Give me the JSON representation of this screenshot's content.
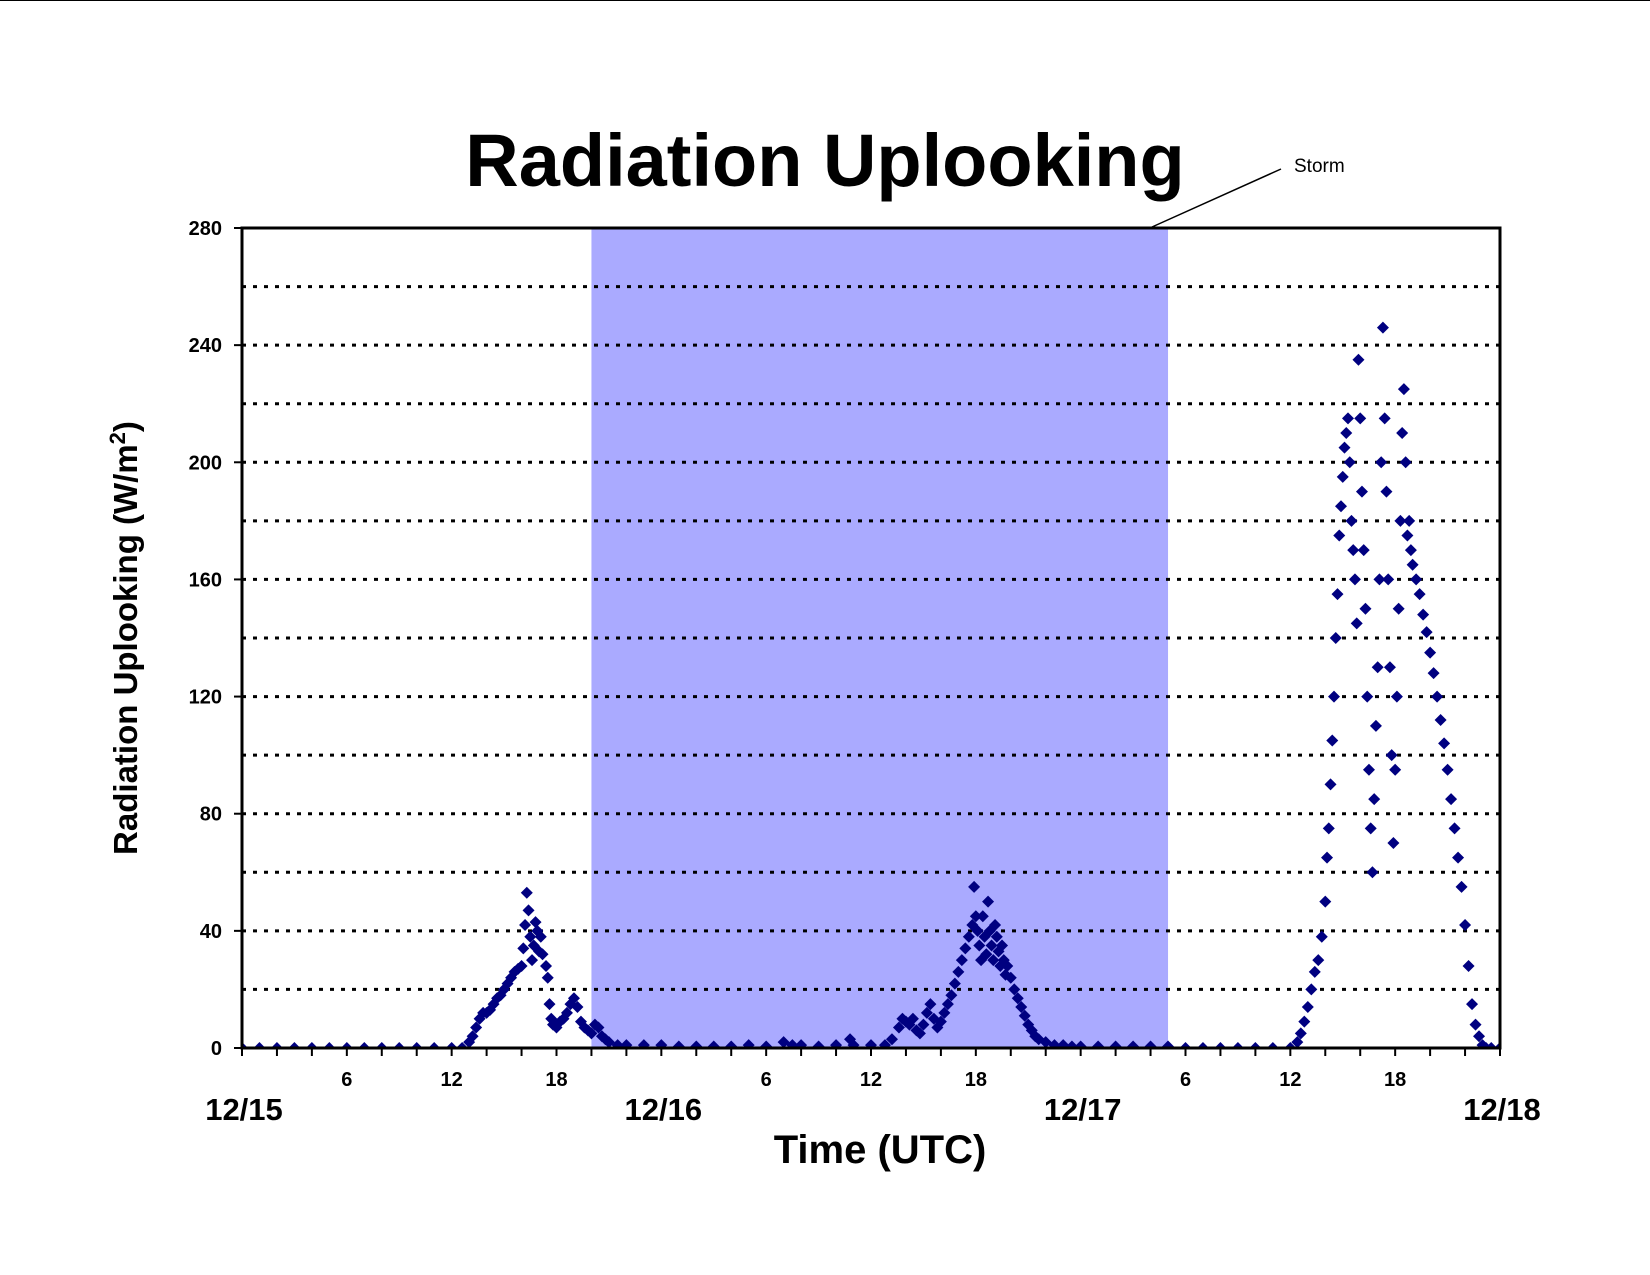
{
  "chart_data": {
    "type": "scatter",
    "title": "Radiation Uplooking",
    "ylabel": "Radiation Uplooking (W/m",
    "ylabel_sup": "2",
    "ylabel_end": ")",
    "xlabel": "Time (UTC)",
    "x_unit": "hours since 12/15 00 UTC",
    "xlim": [
      0,
      72
    ],
    "ylim": [
      0,
      280
    ],
    "y_ticks": [
      "0",
      "40",
      "80",
      "120",
      "160",
      "200",
      "240",
      "280"
    ],
    "y_tick_values": [
      0,
      40,
      80,
      120,
      160,
      200,
      240,
      280
    ],
    "y_grid": [
      20,
      40,
      60,
      80,
      100,
      120,
      140,
      160,
      180,
      200,
      220,
      240,
      260
    ],
    "grid": "dotted horizontal",
    "x_hour_ticks": [
      {
        "x": 6,
        "label": "6"
      },
      {
        "x": 12,
        "label": "12"
      },
      {
        "x": 18,
        "label": "18"
      },
      {
        "x": 30,
        "label": "6"
      },
      {
        "x": 36,
        "label": "12"
      },
      {
        "x": 42,
        "label": "18"
      },
      {
        "x": 54,
        "label": "6"
      },
      {
        "x": 60,
        "label": "12"
      },
      {
        "x": 66,
        "label": "18"
      }
    ],
    "x_day_labels": [
      {
        "x": 0,
        "label": "12/15"
      },
      {
        "x": 24,
        "label": "12/16"
      },
      {
        "x": 48,
        "label": "12/17"
      },
      {
        "x": 72,
        "label": "12/18"
      }
    ],
    "storm_period": {
      "label": "Storm",
      "x_start": 20,
      "x_end": 53
    },
    "colors": {
      "marker": "#000080",
      "storm": "#aaaaff",
      "grid": "#000000"
    },
    "series": [
      {
        "marker": "diamond",
        "points": [
          [
            0,
            0
          ],
          [
            1,
            0
          ],
          [
            2,
            0
          ],
          [
            3,
            0
          ],
          [
            4,
            0
          ],
          [
            5,
            0
          ],
          [
            6,
            0
          ],
          [
            7,
            0
          ],
          [
            8,
            0
          ],
          [
            9,
            0
          ],
          [
            10,
            0
          ],
          [
            11,
            0
          ],
          [
            12,
            0
          ],
          [
            12.6,
            0
          ],
          [
            13,
            2
          ],
          [
            13.2,
            4
          ],
          [
            13.4,
            7
          ],
          [
            13.6,
            10
          ],
          [
            13.8,
            12
          ],
          [
            14,
            12
          ],
          [
            14.2,
            13
          ],
          [
            14.4,
            15
          ],
          [
            14.6,
            17
          ],
          [
            14.8,
            18
          ],
          [
            15,
            20
          ],
          [
            15.2,
            22
          ],
          [
            15.4,
            24
          ],
          [
            15.6,
            26
          ],
          [
            15.8,
            27
          ],
          [
            16,
            28
          ],
          [
            16.1,
            34
          ],
          [
            16.2,
            42
          ],
          [
            16.3,
            53
          ],
          [
            16.4,
            47
          ],
          [
            16.5,
            38
          ],
          [
            16.6,
            30
          ],
          [
            16.7,
            35
          ],
          [
            16.8,
            43
          ],
          [
            16.9,
            40
          ],
          [
            17,
            33
          ],
          [
            17.1,
            38
          ],
          [
            17.2,
            32
          ],
          [
            17.4,
            28
          ],
          [
            17.5,
            24
          ],
          [
            17.6,
            15
          ],
          [
            17.7,
            10
          ],
          [
            17.8,
            8
          ],
          [
            18,
            7
          ],
          [
            18.2,
            9
          ],
          [
            18.4,
            10
          ],
          [
            18.6,
            12
          ],
          [
            18.8,
            15
          ],
          [
            19,
            17
          ],
          [
            19.2,
            14
          ],
          [
            19.4,
            9
          ],
          [
            19.6,
            7
          ],
          [
            19.8,
            6
          ],
          [
            20,
            5
          ],
          [
            20.2,
            8
          ],
          [
            20.4,
            7
          ],
          [
            20.6,
            4
          ],
          [
            20.8,
            3
          ],
          [
            21,
            2
          ],
          [
            21.5,
            1
          ],
          [
            22,
            1
          ],
          [
            23,
            1
          ],
          [
            24,
            1
          ],
          [
            25,
            0.5
          ],
          [
            26,
            0.5
          ],
          [
            27,
            0.5
          ],
          [
            28,
            0.5
          ],
          [
            29,
            1
          ],
          [
            30,
            0.5
          ],
          [
            31,
            2
          ],
          [
            31.5,
            1
          ],
          [
            32,
            1
          ],
          [
            33,
            0.5
          ],
          [
            34,
            1
          ],
          [
            34.8,
            3
          ],
          [
            35,
            1
          ],
          [
            36,
            1
          ],
          [
            36.8,
            1
          ],
          [
            37.2,
            3
          ],
          [
            37.6,
            7
          ],
          [
            37.8,
            10
          ],
          [
            38,
            9
          ],
          [
            38.2,
            8
          ],
          [
            38.4,
            10
          ],
          [
            38.6,
            6
          ],
          [
            38.8,
            5
          ],
          [
            39,
            8
          ],
          [
            39.2,
            12
          ],
          [
            39.4,
            15
          ],
          [
            39.6,
            10
          ],
          [
            39.8,
            7
          ],
          [
            40,
            9
          ],
          [
            40.2,
            12
          ],
          [
            40.4,
            15
          ],
          [
            40.6,
            18
          ],
          [
            40.8,
            22
          ],
          [
            41,
            26
          ],
          [
            41.2,
            30
          ],
          [
            41.4,
            34
          ],
          [
            41.6,
            38
          ],
          [
            41.8,
            42
          ],
          [
            41.9,
            55
          ],
          [
            42,
            45
          ],
          [
            42.1,
            40
          ],
          [
            42.2,
            35
          ],
          [
            42.3,
            30
          ],
          [
            42.4,
            45
          ],
          [
            42.5,
            38
          ],
          [
            42.6,
            32
          ],
          [
            42.7,
            50
          ],
          [
            42.8,
            40
          ],
          [
            42.9,
            35
          ],
          [
            43,
            30
          ],
          [
            43.1,
            42
          ],
          [
            43.2,
            38
          ],
          [
            43.3,
            33
          ],
          [
            43.4,
            28
          ],
          [
            43.5,
            35
          ],
          [
            43.6,
            30
          ],
          [
            43.7,
            25
          ],
          [
            43.8,
            28
          ],
          [
            44,
            24
          ],
          [
            44.2,
            20
          ],
          [
            44.4,
            17
          ],
          [
            44.6,
            14
          ],
          [
            44.8,
            11
          ],
          [
            45,
            8
          ],
          [
            45.2,
            6
          ],
          [
            45.4,
            4
          ],
          [
            45.6,
            3
          ],
          [
            46,
            2
          ],
          [
            46.5,
            1
          ],
          [
            47,
            1
          ],
          [
            47.5,
            0.5
          ],
          [
            48,
            0.5
          ],
          [
            49,
            0.5
          ],
          [
            50,
            0.5
          ],
          [
            51,
            0.5
          ],
          [
            52,
            0.5
          ],
          [
            53,
            0.5
          ],
          [
            54,
            0
          ],
          [
            55,
            0
          ],
          [
            56,
            0
          ],
          [
            57,
            0
          ],
          [
            58,
            0
          ],
          [
            59,
            0
          ],
          [
            60,
            0
          ],
          [
            60.4,
            2
          ],
          [
            60.6,
            5
          ],
          [
            60.8,
            9
          ],
          [
            61,
            14
          ],
          [
            61.2,
            20
          ],
          [
            61.4,
            26
          ],
          [
            61.6,
            30
          ],
          [
            61.8,
            38
          ],
          [
            62,
            50
          ],
          [
            62.1,
            65
          ],
          [
            62.2,
            75
          ],
          [
            62.3,
            90
          ],
          [
            62.4,
            105
          ],
          [
            62.5,
            120
          ],
          [
            62.6,
            140
          ],
          [
            62.7,
            155
          ],
          [
            62.8,
            175
          ],
          [
            62.9,
            185
          ],
          [
            63,
            195
          ],
          [
            63.1,
            205
          ],
          [
            63.2,
            210
          ],
          [
            63.3,
            215
          ],
          [
            63.4,
            200
          ],
          [
            63.5,
            180
          ],
          [
            63.6,
            170
          ],
          [
            63.7,
            160
          ],
          [
            63.8,
            145
          ],
          [
            63.9,
            235
          ],
          [
            64,
            215
          ],
          [
            64.1,
            190
          ],
          [
            64.2,
            170
          ],
          [
            64.3,
            150
          ],
          [
            64.4,
            120
          ],
          [
            64.5,
            95
          ],
          [
            64.6,
            75
          ],
          [
            64.7,
            60
          ],
          [
            64.8,
            85
          ],
          [
            64.9,
            110
          ],
          [
            65,
            130
          ],
          [
            65.1,
            160
          ],
          [
            65.2,
            200
          ],
          [
            65.3,
            246
          ],
          [
            65.4,
            215
          ],
          [
            65.5,
            190
          ],
          [
            65.6,
            160
          ],
          [
            65.7,
            130
          ],
          [
            65.8,
            100
          ],
          [
            65.9,
            70
          ],
          [
            66,
            95
          ],
          [
            66.1,
            120
          ],
          [
            66.2,
            150
          ],
          [
            66.3,
            180
          ],
          [
            66.4,
            210
          ],
          [
            66.5,
            225
          ],
          [
            66.6,
            200
          ],
          [
            66.7,
            175
          ],
          [
            66.8,
            180
          ],
          [
            66.9,
            170
          ],
          [
            67,
            165
          ],
          [
            67.2,
            160
          ],
          [
            67.4,
            155
          ],
          [
            67.6,
            148
          ],
          [
            67.8,
            142
          ],
          [
            68,
            135
          ],
          [
            68.2,
            128
          ],
          [
            68.4,
            120
          ],
          [
            68.6,
            112
          ],
          [
            68.8,
            104
          ],
          [
            69,
            95
          ],
          [
            69.2,
            85
          ],
          [
            69.4,
            75
          ],
          [
            69.6,
            65
          ],
          [
            69.8,
            55
          ],
          [
            70,
            42
          ],
          [
            70.2,
            28
          ],
          [
            70.4,
            15
          ],
          [
            70.6,
            8
          ],
          [
            70.8,
            4
          ],
          [
            71,
            1
          ],
          [
            71.2,
            0
          ],
          [
            71.5,
            0
          ],
          [
            72,
            0
          ]
        ]
      }
    ]
  }
}
